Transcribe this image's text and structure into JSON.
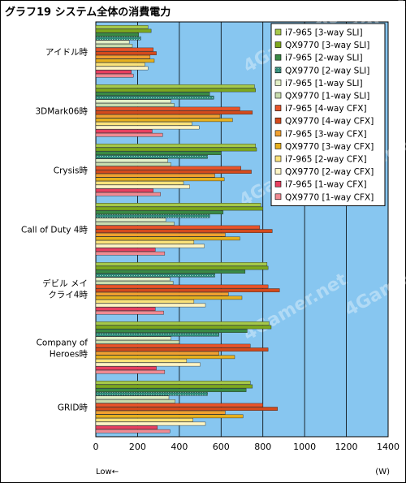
{
  "chart_data": {
    "type": "bar",
    "orientation": "horizontal",
    "title": "グラフ19 システム全体の消費電力",
    "xlabel": "",
    "ylabel": "",
    "x_unit": "(W)",
    "low_label": "Low←",
    "watermark": "4Gamer.net",
    "xlim": [
      0,
      1400
    ],
    "xticks": [
      0,
      200,
      400,
      600,
      800,
      1000,
      1200,
      1400
    ],
    "grid": true,
    "legend_position": "top-right",
    "categories": [
      [
        "アイドル時"
      ],
      [
        "3DMark06時"
      ],
      [
        "Crysis時"
      ],
      [
        "Call of Duty 4時"
      ],
      [
        "デビル メイ",
        "クライ4時"
      ],
      [
        "Company of",
        "Heroes時"
      ],
      [
        "GRID時"
      ]
    ],
    "series": [
      {
        "name": "i7-965 [3-way SLI]",
        "color": "#a6c94a",
        "values": [
          250,
          760,
          765,
          790,
          820,
          830,
          740
        ]
      },
      {
        "name": "QX9770 [3-way SLI]",
        "color": "#7da81e",
        "values": [
          265,
          765,
          770,
          800,
          825,
          840,
          750
        ]
      },
      {
        "name": "i7-965 [2-way SLI]",
        "color": "#3a8a45",
        "values": [
          205,
          545,
          600,
          610,
          715,
          725,
          720
        ]
      },
      {
        "name": "QX9770 [2-way SLI]",
        "color": "#2f8a78",
        "values": [
          215,
          565,
          535,
          545,
          570,
          590,
          535
        ]
      },
      {
        "name": "i7-965 [1-way SLI]",
        "color": "#e2efc6",
        "values": [
          160,
          360,
          345,
          335,
          355,
          360,
          350
        ]
      },
      {
        "name": "QX9770 [1-way SLI]",
        "color": "#c8dcae",
        "values": [
          175,
          375,
          360,
          375,
          370,
          400,
          380
        ]
      },
      {
        "name": "i7-965 [4-way CFX]",
        "color": "#e8542a",
        "values": [
          275,
          690,
          695,
          785,
          825,
          740,
          800
        ]
      },
      {
        "name": "QX9770 [4-way CFX]",
        "color": "#d44a1c",
        "values": [
          290,
          750,
          745,
          845,
          880,
          825,
          870
        ]
      },
      {
        "name": "i7-965 [3-way CFX]",
        "color": "#f0a030",
        "values": [
          260,
          595,
          570,
          620,
          635,
          590,
          620
        ]
      },
      {
        "name": "QX9770 [3-way CFX]",
        "color": "#e6b01e",
        "values": [
          280,
          655,
          615,
          690,
          700,
          665,
          705
        ]
      },
      {
        "name": "i7-965 [2-way CFX]",
        "color": "#fae27a",
        "values": [
          235,
          460,
          420,
          470,
          470,
          435,
          465
        ]
      },
      {
        "name": "QX9770 [2-way CFX]",
        "color": "#fcf4c4",
        "values": [
          250,
          495,
          450,
          520,
          525,
          500,
          525
        ]
      },
      {
        "name": "i7-965 [1-way CFX]",
        "color": "#e84060",
        "values": [
          170,
          270,
          275,
          285,
          285,
          290,
          295
        ]
      },
      {
        "name": "QX9770 [1-way CFX]",
        "color": "#f08a92",
        "values": [
          180,
          320,
          310,
          330,
          325,
          330,
          355
        ]
      }
    ]
  }
}
